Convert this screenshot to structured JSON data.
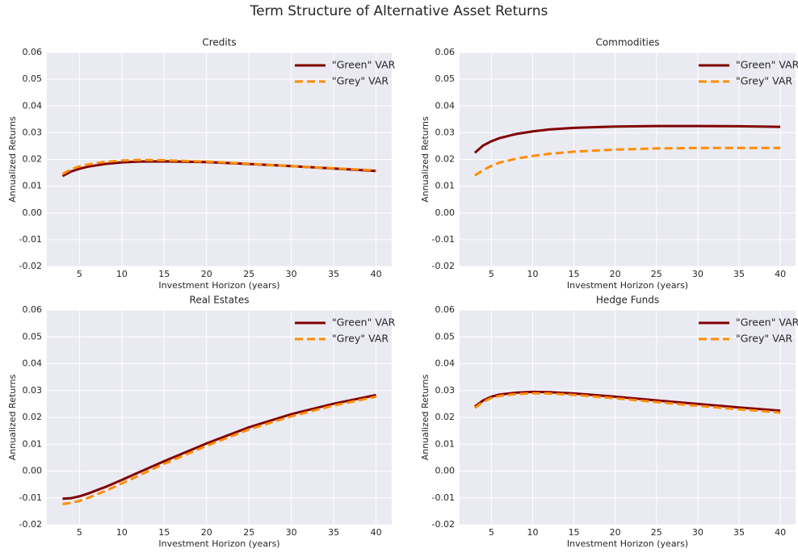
{
  "title": "Term Structure of Alternative Asset Returns",
  "chart_data": [
    {
      "type": "line",
      "title": "Credits",
      "xlabel": "Investment Horizon (years)",
      "ylabel": "Annualized Returns",
      "x": [
        3,
        4,
        5,
        6,
        8,
        10,
        12,
        15,
        20,
        25,
        30,
        35,
        40
      ],
      "series": [
        {
          "name": "\"Green\" VAR",
          "color": "#800000",
          "linestyle": "solid",
          "values": [
            0.0138,
            0.0155,
            0.0165,
            0.0173,
            0.0183,
            0.0189,
            0.0192,
            0.0193,
            0.019,
            0.0183,
            0.0175,
            0.0166,
            0.0157
          ]
        },
        {
          "name": "\"Grey\" VAR",
          "color": "#ff8c00",
          "linestyle": "dashed",
          "values": [
            0.0145,
            0.0163,
            0.0174,
            0.0181,
            0.0191,
            0.0196,
            0.0198,
            0.0197,
            0.0192,
            0.0184,
            0.0175,
            0.0167,
            0.0159
          ]
        }
      ],
      "xlim": [
        1.15,
        41.85
      ],
      "xticks": [
        5,
        10,
        15,
        20,
        25,
        30,
        35,
        40
      ],
      "ylim": [
        -0.02,
        0.06
      ],
      "yticks": [
        -0.02,
        -0.01,
        {
          "value": 0,
          "label": "0.00"
        },
        0.01,
        0.02,
        0.03,
        0.04,
        0.05,
        0.06
      ],
      "grid": true,
      "legend": "upper right"
    },
    {
      "type": "line",
      "title": "Commodities",
      "xlabel": "Investment Horizon (years)",
      "ylabel": "Annualized Returns",
      "x": [
        3,
        4,
        5,
        6,
        8,
        10,
        12,
        15,
        20,
        25,
        30,
        35,
        40
      ],
      "series": [
        {
          "name": "\"Green\" VAR",
          "color": "#800000",
          "linestyle": "solid",
          "values": [
            0.0225,
            0.0252,
            0.0268,
            0.028,
            0.0295,
            0.0305,
            0.0312,
            0.0318,
            0.0323,
            0.0325,
            0.0325,
            0.0324,
            0.0322
          ]
        },
        {
          "name": "\"Grey\" VAR",
          "color": "#ff8c00",
          "linestyle": "dashed",
          "values": [
            0.014,
            0.016,
            0.0176,
            0.0188,
            0.0203,
            0.0213,
            0.0221,
            0.0229,
            0.0237,
            0.0241,
            0.0243,
            0.0243,
            0.0243
          ]
        }
      ],
      "xlim": [
        1.15,
        41.85
      ],
      "xticks": [
        5,
        10,
        15,
        20,
        25,
        30,
        35,
        40
      ],
      "ylim": [
        -0.02,
        0.06
      ],
      "yticks": [
        -0.02,
        -0.01,
        {
          "value": 0,
          "label": "0.00"
        },
        0.01,
        0.02,
        0.03,
        0.04,
        0.05,
        0.06
      ],
      "grid": true,
      "legend": "upper right"
    },
    {
      "type": "line",
      "title": "Real Estates",
      "xlabel": "Investment Horizon (years)",
      "ylabel": "Annualized Returns",
      "x": [
        3,
        4,
        5,
        6,
        8,
        10,
        12,
        15,
        20,
        25,
        30,
        35,
        40
      ],
      "series": [
        {
          "name": "\"Green\" VAR",
          "color": "#800000",
          "linestyle": "solid",
          "values": [
            -0.0103,
            -0.0101,
            -0.0094,
            -0.0084,
            -0.006,
            -0.0033,
            -0.0005,
            0.0037,
            0.0103,
            0.0163,
            0.0212,
            0.0251,
            0.0283
          ]
        },
        {
          "name": "\"Grey\" VAR",
          "color": "#ff8c00",
          "linestyle": "dashed",
          "values": [
            -0.0123,
            -0.0119,
            -0.0111,
            -0.01,
            -0.0075,
            -0.0046,
            -0.0017,
            0.0027,
            0.0094,
            0.0155,
            0.0204,
            0.0244,
            0.0277
          ]
        }
      ],
      "xlim": [
        1.15,
        41.85
      ],
      "xticks": [
        5,
        10,
        15,
        20,
        25,
        30,
        35,
        40
      ],
      "ylim": [
        -0.02,
        0.06
      ],
      "yticks": [
        -0.02,
        -0.01,
        {
          "value": 0,
          "label": "0.00"
        },
        0.01,
        0.02,
        0.03,
        0.04,
        0.05,
        0.06
      ],
      "grid": true,
      "legend": "upper right"
    },
    {
      "type": "line",
      "title": "Hedge Funds",
      "xlabel": "Investment Horizon (years)",
      "ylabel": "Annualized Returns",
      "x": [
        3,
        4,
        5,
        6,
        8,
        10,
        12,
        15,
        20,
        25,
        30,
        35,
        40
      ],
      "series": [
        {
          "name": "\"Green\" VAR",
          "color": "#800000",
          "linestyle": "solid",
          "values": [
            0.024,
            0.0263,
            0.0277,
            0.0285,
            0.0292,
            0.0295,
            0.0294,
            0.0289,
            0.0277,
            0.0263,
            0.025,
            0.0237,
            0.0225
          ]
        },
        {
          "name": "\"Grey\" VAR",
          "color": "#ff8c00",
          "linestyle": "dashed",
          "values": [
            0.0235,
            0.0258,
            0.0272,
            0.028,
            0.0287,
            0.029,
            0.0289,
            0.0284,
            0.0271,
            0.0257,
            0.0243,
            0.023,
            0.0218
          ]
        }
      ],
      "xlim": [
        1.15,
        41.85
      ],
      "xticks": [
        5,
        10,
        15,
        20,
        25,
        30,
        35,
        40
      ],
      "ylim": [
        -0.02,
        0.06
      ],
      "yticks": [
        -0.02,
        -0.01,
        {
          "value": 0,
          "label": "0.00"
        },
        0.01,
        0.02,
        0.03,
        0.04,
        0.05,
        0.06
      ],
      "grid": true,
      "legend": "upper right"
    }
  ]
}
